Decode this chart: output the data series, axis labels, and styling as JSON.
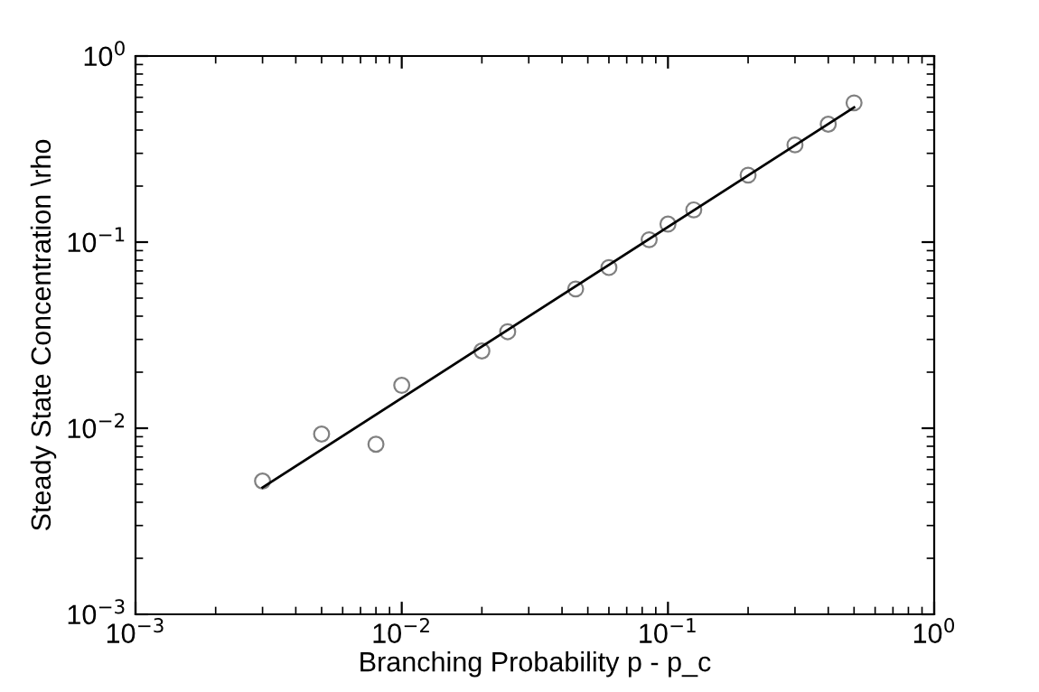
{
  "chart_data": {
    "type": "scatter",
    "xlabel": "Branching Probability p - p_c",
    "ylabel": "Steady State Concentration \\rho",
    "log": "xy",
    "xlim": [
      0.001,
      1
    ],
    "ylim": [
      0.001,
      1
    ],
    "xticks": [
      {
        "value": 0.001,
        "label": "10$^{−3}$"
      },
      {
        "value": 0.01,
        "label": "10$^{−2}$"
      },
      {
        "value": 0.1,
        "label": "10$^{−1}$"
      },
      {
        "value": 1,
        "label": "10$^{0}$"
      }
    ],
    "yticks": [
      {
        "value": 0.001,
        "label": "10$^{−3}$"
      },
      {
        "value": 0.01,
        "label": "10$^{−2}$"
      },
      {
        "value": 0.1,
        "label": "10$^{−1}$"
      },
      {
        "value": 1,
        "label": "10$^{0}$"
      }
    ],
    "grid": false,
    "legend": false,
    "series": [
      {
        "color": "#808080",
        "marker": "circle",
        "x": [
          0.003,
          0.005,
          0.008,
          0.01,
          0.02,
          0.025,
          0.045,
          0.06,
          0.085,
          0.1,
          0.125,
          0.2,
          0.3,
          0.4,
          0.5
        ],
        "values": [
          0.0052,
          0.0093,
          0.0082,
          0.017,
          0.026,
          0.033,
          0.056,
          0.073,
          0.103,
          0.125,
          0.149,
          0.229,
          0.333,
          0.43,
          0.56
        ]
      },
      {
        "type": "line",
        "color": "#000000",
        "marker": "none",
        "line_style": "solid",
        "x": [
          0.003,
          0.5
        ],
        "values": [
          0.0048,
          0.53
        ]
      }
    ]
  }
}
